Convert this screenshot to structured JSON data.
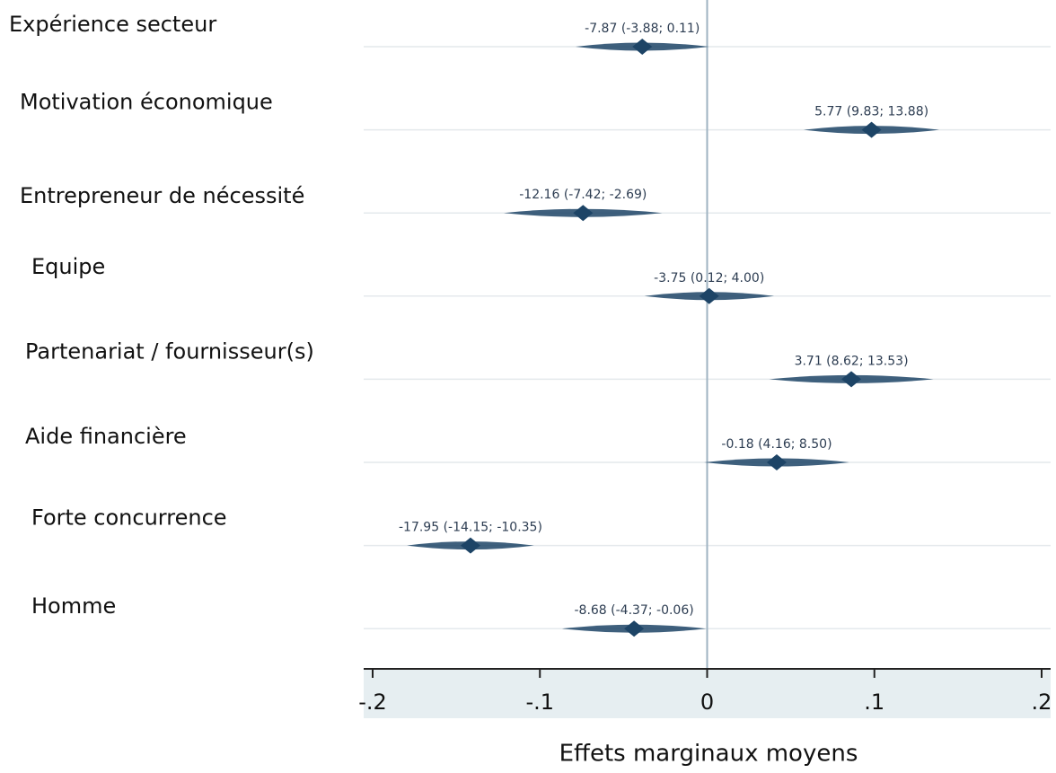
{
  "chart_data": {
    "type": "coefficient",
    "x_label": "Effets marginaux moyens",
    "categories": [
      "Expérience secteur",
      "Motivation économique",
      "Entrepreneur de nécessité",
      "Equipe",
      "Partenariat / fournisseur(s)",
      "Aide financière",
      "Forte concurrence",
      "Homme"
    ],
    "values": [
      -0.0388,
      0.0983,
      -0.0742,
      0.0012,
      0.0862,
      0.0416,
      -0.1415,
      -0.0437
    ],
    "lower": [
      -0.0787,
      0.0577,
      -0.1216,
      -0.0375,
      0.0371,
      -0.0018,
      -0.1795,
      -0.0868
    ],
    "upper": [
      0.0011,
      0.1388,
      -0.0269,
      0.04,
      0.1353,
      0.085,
      -0.1035,
      -0.0006
    ],
    "value_labels": [
      "-7.87 (-3.88; 0.11)",
      "5.77 (9.83; 13.88)",
      "-12.16 (-7.42; -2.69)",
      "-3.75 (0.12; 4.00)",
      "3.71 (8.62; 13.53)",
      "-0.18 (4.16; 8.50)",
      "-17.95 (-14.15; -10.35)",
      "-8.68 (-4.37; -0.06)"
    ],
    "color": "#1d4466",
    "xlim": [
      -0.2,
      0.2
    ],
    "xticks": [
      {
        "value": -0.2,
        "label": "-.2"
      },
      {
        "value": -0.1,
        "label": "-.1"
      },
      0,
      {
        "value": 0.1,
        "label": ".1"
      },
      {
        "value": 0.2,
        "label": ".2"
      }
    ]
  }
}
